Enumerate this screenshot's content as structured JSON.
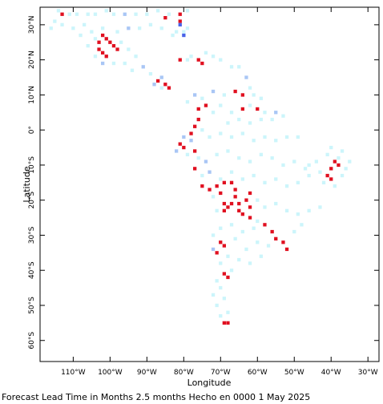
{
  "chart_data": {
    "type": "heatmap",
    "title": "",
    "xlabel": "Longitude",
    "ylabel": "Latitude",
    "xlim": [
      -119,
      -27
    ],
    "ylim": [
      -66,
      35
    ],
    "x_ticks": [
      {
        "value": -110,
        "label": "110°W"
      },
      {
        "value": -100,
        "label": "100°W"
      },
      {
        "value": -90,
        "label": "90°W"
      },
      {
        "value": -80,
        "label": "80°W"
      },
      {
        "value": -70,
        "label": "70°W"
      },
      {
        "value": -60,
        "label": "60°W"
      },
      {
        "value": -50,
        "label": "50°W"
      },
      {
        "value": -40,
        "label": "40°W"
      },
      {
        "value": -30,
        "label": "30°W"
      }
    ],
    "y_ticks": [
      {
        "value": 30,
        "label": "30°N"
      },
      {
        "value": 20,
        "label": "20°N"
      },
      {
        "value": 10,
        "label": "10°N"
      },
      {
        "value": 0,
        "label": "0°"
      },
      {
        "value": -10,
        "label": "10°S"
      },
      {
        "value": -20,
        "label": "20°S"
      },
      {
        "value": -30,
        "label": "30°S"
      },
      {
        "value": -40,
        "label": "40°S"
      },
      {
        "value": -50,
        "label": "50°S"
      },
      {
        "value": -60,
        "label": "60°S"
      }
    ],
    "categories": {
      "pale": "#ccf5fb",
      "light_blue": "#a9c6f5",
      "blue": "#4a63e8",
      "red": "#e01020"
    },
    "cells": [
      [
        -114,
        34,
        "pale"
      ],
      [
        -113,
        33,
        "red"
      ],
      [
        -111,
        33,
        "pale"
      ],
      [
        -109,
        33,
        "pale"
      ],
      [
        -106,
        33,
        "pale"
      ],
      [
        -104,
        33,
        "pale"
      ],
      [
        -101,
        34,
        "pale"
      ],
      [
        -99,
        33,
        "pale"
      ],
      [
        -96,
        33,
        "light_blue"
      ],
      [
        -93,
        33,
        "pale"
      ],
      [
        -90,
        33,
        "pale"
      ],
      [
        -87,
        34,
        "pale"
      ],
      [
        -84,
        33,
        "pale"
      ],
      [
        -81,
        33,
        "red"
      ],
      [
        -79,
        34,
        "pale"
      ],
      [
        -85,
        32,
        "red"
      ],
      [
        -115,
        31,
        "pale"
      ],
      [
        -113,
        30,
        "pale"
      ],
      [
        -116,
        29,
        "pale"
      ],
      [
        -110,
        29,
        "pale"
      ],
      [
        -107,
        30,
        "pale"
      ],
      [
        -108,
        27,
        "pale"
      ],
      [
        -105,
        28,
        "pale"
      ],
      [
        -102,
        29,
        "pale"
      ],
      [
        -98,
        28,
        "pale"
      ],
      [
        -95,
        29,
        "light_blue"
      ],
      [
        -92,
        29,
        "pale"
      ],
      [
        -89,
        30,
        "pale"
      ],
      [
        -86,
        29,
        "pale"
      ],
      [
        -81,
        31,
        "red"
      ],
      [
        -81,
        30,
        "blue"
      ],
      [
        -82,
        28,
        "pale"
      ],
      [
        -80,
        28,
        "pale"
      ],
      [
        -80,
        27,
        "blue"
      ],
      [
        -79,
        29,
        "pale"
      ],
      [
        -83,
        27,
        "pale"
      ],
      [
        -106,
        24,
        "pale"
      ],
      [
        -104,
        26,
        "pale"
      ],
      [
        -102,
        27,
        "red"
      ],
      [
        -101,
        26,
        "red"
      ],
      [
        -103,
        25,
        "red"
      ],
      [
        -100,
        25,
        "red"
      ],
      [
        -99,
        24,
        "red"
      ],
      [
        -98,
        23,
        "red"
      ],
      [
        -102,
        22,
        "red"
      ],
      [
        -101,
        21,
        "red"
      ],
      [
        -103,
        23,
        "red"
      ],
      [
        -97,
        25,
        "pale"
      ],
      [
        -95,
        23,
        "pale"
      ],
      [
        -93,
        21,
        "pale"
      ],
      [
        -96,
        19,
        "pale"
      ],
      [
        -99,
        19,
        "pale"
      ],
      [
        -102,
        19,
        "light_blue"
      ],
      [
        -104,
        21,
        "pale"
      ],
      [
        -91,
        18,
        "light_blue"
      ],
      [
        -89,
        16,
        "pale"
      ],
      [
        -86,
        15,
        "light_blue"
      ],
      [
        -94,
        17,
        "pale"
      ],
      [
        -87,
        14,
        "red"
      ],
      [
        -85,
        13,
        "red"
      ],
      [
        -84,
        12,
        "red"
      ],
      [
        -86,
        12,
        "pale"
      ],
      [
        -88,
        13,
        "light_blue"
      ],
      [
        -76,
        20,
        "red"
      ],
      [
        -75,
        19,
        "red"
      ],
      [
        -72,
        21,
        "pale"
      ],
      [
        -74,
        22,
        "pale"
      ],
      [
        -70,
        20,
        "pale"
      ],
      [
        -78,
        21,
        "pale"
      ],
      [
        -81,
        20,
        "red"
      ],
      [
        -79,
        20,
        "pale"
      ],
      [
        -67,
        18,
        "pale"
      ],
      [
        -65,
        18,
        "pale"
      ],
      [
        -63,
        15,
        "light_blue"
      ],
      [
        -62,
        12,
        "pale"
      ],
      [
        -77,
        10,
        "light_blue"
      ],
      [
        -79,
        8,
        "pale"
      ],
      [
        -75,
        9,
        "pale"
      ],
      [
        -72,
        11,
        "light_blue"
      ],
      [
        -69,
        10,
        "pale"
      ],
      [
        -66,
        11,
        "red"
      ],
      [
        -64,
        10,
        "red"
      ],
      [
        -61,
        10,
        "pale"
      ],
      [
        -59,
        9,
        "pale"
      ],
      [
        -74,
        7,
        "red"
      ],
      [
        -76,
        6,
        "red"
      ],
      [
        -72,
        5,
        "pale"
      ],
      [
        -70,
        7,
        "pale"
      ],
      [
        -67,
        5,
        "pale"
      ],
      [
        -64,
        6,
        "red"
      ],
      [
        -62,
        7,
        "pale"
      ],
      [
        -60,
        6,
        "red"
      ],
      [
        -58,
        5,
        "pale"
      ],
      [
        -55,
        5,
        "light_blue"
      ],
      [
        -53,
        4,
        "pale"
      ],
      [
        -56,
        3,
        "pale"
      ],
      [
        -59,
        3,
        "pale"
      ],
      [
        -62,
        2,
        "pale"
      ],
      [
        -65,
        3,
        "pale"
      ],
      [
        -68,
        2,
        "pale"
      ],
      [
        -76,
        3,
        "red"
      ],
      [
        -77,
        1,
        "red"
      ],
      [
        -78,
        -1,
        "red"
      ],
      [
        -75,
        0,
        "pale"
      ],
      [
        -73,
        -2,
        "pale"
      ],
      [
        -70,
        -1,
        "pale"
      ],
      [
        -67,
        -2,
        "pale"
      ],
      [
        -64,
        -1,
        "pale"
      ],
      [
        -61,
        -3,
        "pale"
      ],
      [
        -58,
        -2,
        "pale"
      ],
      [
        -55,
        -3,
        "pale"
      ],
      [
        -52,
        -2,
        "pale"
      ],
      [
        -49,
        -2,
        "pale"
      ],
      [
        -78,
        -3,
        "light_blue"
      ],
      [
        -80,
        -2,
        "light_blue"
      ],
      [
        -81,
        -4,
        "red"
      ],
      [
        -80,
        -5,
        "red"
      ],
      [
        -82,
        -6,
        "light_blue"
      ],
      [
        -79,
        -7,
        "pale"
      ],
      [
        -77,
        -6,
        "red"
      ],
      [
        -76,
        -8,
        "pale"
      ],
      [
        -74,
        -9,
        "light_blue"
      ],
      [
        -71,
        -7,
        "pale"
      ],
      [
        -68,
        -6,
        "pale"
      ],
      [
        -65,
        -8,
        "pale"
      ],
      [
        -62,
        -9,
        "pale"
      ],
      [
        -59,
        -7,
        "pale"
      ],
      [
        -56,
        -8,
        "pale"
      ],
      [
        -53,
        -10,
        "pale"
      ],
      [
        -50,
        -9,
        "pale"
      ],
      [
        -47,
        -11,
        "pale"
      ],
      [
        -77,
        -11,
        "red"
      ],
      [
        -75,
        -13,
        "pale"
      ],
      [
        -73,
        -12,
        "light_blue"
      ],
      [
        -70,
        -14,
        "pale"
      ],
      [
        -67,
        -12,
        "pale"
      ],
      [
        -64,
        -14,
        "pale"
      ],
      [
        -61,
        -13,
        "pale"
      ],
      [
        -58,
        -15,
        "pale"
      ],
      [
        -55,
        -14,
        "pale"
      ],
      [
        -52,
        -16,
        "pale"
      ],
      [
        -49,
        -15,
        "pale"
      ],
      [
        -46,
        -13,
        "pale"
      ],
      [
        -75,
        -16,
        "red"
      ],
      [
        -73,
        -17,
        "red"
      ],
      [
        -71,
        -16,
        "red"
      ],
      [
        -69,
        -15,
        "red"
      ],
      [
        -67,
        -15,
        "red"
      ],
      [
        -66,
        -17,
        "red"
      ],
      [
        -66,
        -19,
        "red"
      ],
      [
        -67,
        -21,
        "red"
      ],
      [
        -68,
        -22,
        "red"
      ],
      [
        -65,
        -23,
        "red"
      ],
      [
        -65,
        -21,
        "red"
      ],
      [
        -63,
        -20,
        "red"
      ],
      [
        -62,
        -22,
        "red"
      ],
      [
        -64,
        -24,
        "red"
      ],
      [
        -62,
        -25,
        "red"
      ],
      [
        -69,
        -21,
        "red"
      ],
      [
        -69,
        -23,
        "red"
      ],
      [
        -70,
        -18,
        "red"
      ],
      [
        -62,
        -18,
        "red"
      ],
      [
        -60,
        -20,
        "pale"
      ],
      [
        -58,
        -22,
        "pale"
      ],
      [
        -55,
        -21,
        "pale"
      ],
      [
        -52,
        -23,
        "pale"
      ],
      [
        -49,
        -24,
        "pale"
      ],
      [
        -46,
        -23,
        "pale"
      ],
      [
        -43,
        -22,
        "pale"
      ],
      [
        -72,
        -19,
        "pale"
      ],
      [
        -71,
        -23,
        "pale"
      ],
      [
        -58,
        -27,
        "red"
      ],
      [
        -56,
        -29,
        "red"
      ],
      [
        -55,
        -31,
        "red"
      ],
      [
        -53,
        -32,
        "red"
      ],
      [
        -52,
        -34,
        "red"
      ],
      [
        -60,
        -26,
        "pale"
      ],
      [
        -61,
        -28,
        "pale"
      ],
      [
        -64,
        -29,
        "pale"
      ],
      [
        -67,
        -27,
        "pale"
      ],
      [
        -70,
        -28,
        "pale"
      ],
      [
        -72,
        -30,
        "pale"
      ],
      [
        -66,
        -31,
        "pale"
      ],
      [
        -60,
        -32,
        "pale"
      ],
      [
        -57,
        -33,
        "pale"
      ],
      [
        -63,
        -34,
        "pale"
      ],
      [
        -50,
        -29,
        "pale"
      ],
      [
        -48,
        -27,
        "pale"
      ],
      [
        -70,
        -32,
        "red"
      ],
      [
        -69,
        -33,
        "red"
      ],
      [
        -71,
        -35,
        "red"
      ],
      [
        -72,
        -34,
        "light_blue"
      ],
      [
        -68,
        -36,
        "pale"
      ],
      [
        -65,
        -37,
        "pale"
      ],
      [
        -62,
        -38,
        "pale"
      ],
      [
        -59,
        -36,
        "pale"
      ],
      [
        -70,
        -38,
        "pale"
      ],
      [
        -67,
        -40,
        "pale"
      ],
      [
        -69,
        -41,
        "red"
      ],
      [
        -68,
        -42,
        "red"
      ],
      [
        -71,
        -43,
        "pale"
      ],
      [
        -70,
        -45,
        "pale"
      ],
      [
        -72,
        -47,
        "pale"
      ],
      [
        -69,
        -48,
        "pale"
      ],
      [
        -71,
        -50,
        "pale"
      ],
      [
        -68,
        -52,
        "pale"
      ],
      [
        -69,
        -55,
        "red"
      ],
      [
        -68,
        -55,
        "red"
      ],
      [
        -70,
        -53,
        "pale"
      ],
      [
        -40,
        -5,
        "pale"
      ],
      [
        -37,
        -6,
        "pale"
      ],
      [
        -38,
        -8,
        "pale"
      ],
      [
        -41,
        -7,
        "pale"
      ],
      [
        -44,
        -9,
        "pale"
      ],
      [
        -46,
        -10,
        "pale"
      ],
      [
        -39,
        -9,
        "red"
      ],
      [
        -38,
        -10,
        "red"
      ],
      [
        -40,
        -11,
        "red"
      ],
      [
        -41,
        -13,
        "red"
      ],
      [
        -40,
        -14,
        "red"
      ],
      [
        -36,
        -11,
        "pale"
      ],
      [
        -37,
        -13,
        "pale"
      ],
      [
        -42,
        -15,
        "pale"
      ],
      [
        -39,
        -16,
        "pale"
      ],
      [
        -43,
        -12,
        "pale"
      ],
      [
        -35,
        -9,
        "pale"
      ]
    ]
  },
  "footer": {
    "caption": "Forecast Lead Time in Months 2.5 months Hecho en 0000 1 May 2025"
  }
}
